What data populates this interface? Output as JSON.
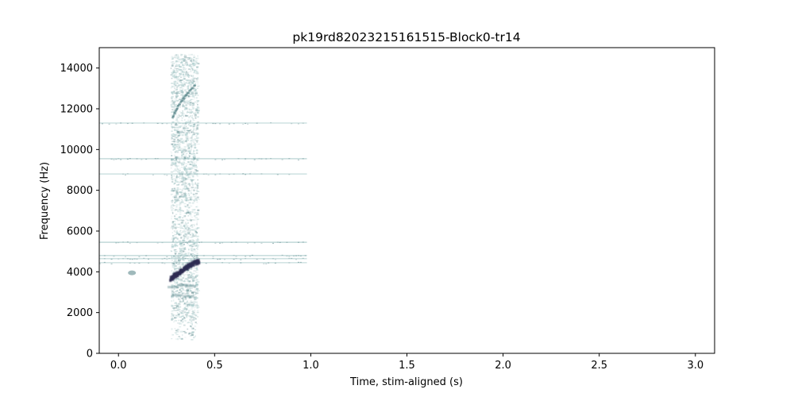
{
  "chart_data": {
    "type": "heatmap",
    "title": "pk19rd82023215161515-Block0-tr14",
    "xlabel": "Time, stim-aligned (s)",
    "ylabel": "Frequency (Hz)",
    "xlim": [
      -0.1,
      3.1
    ],
    "ylim": [
      0,
      15000
    ],
    "x_ticks": [
      0.0,
      0.5,
      1.0,
      1.5,
      2.0,
      2.5,
      3.0
    ],
    "x_tick_labels": [
      "0.0",
      "0.5",
      "1.0",
      "1.5",
      "2.0",
      "2.5",
      "3.0"
    ],
    "y_ticks": [
      0,
      2000,
      4000,
      6000,
      8000,
      10000,
      12000,
      14000
    ],
    "y_tick_labels": [
      "0",
      "2000",
      "4000",
      "6000",
      "8000",
      "10000",
      "12000",
      "14000"
    ],
    "grid": false,
    "colors": {
      "light": "#9fc4c4",
      "mid": "#5f8a8e",
      "dark": "#2e2d52"
    },
    "horizontal_bands": [
      {
        "freq_hz": 11300,
        "t_start": -0.1,
        "t_end": 0.98,
        "intensity": 0.45
      },
      {
        "freq_hz": 9550,
        "t_start": -0.1,
        "t_end": 0.98,
        "intensity": 0.6
      },
      {
        "freq_hz": 8800,
        "t_start": -0.1,
        "t_end": 0.98,
        "intensity": 0.5
      },
      {
        "freq_hz": 5450,
        "t_start": -0.1,
        "t_end": 0.98,
        "intensity": 0.65
      },
      {
        "freq_hz": 4800,
        "t_start": -0.1,
        "t_end": 0.98,
        "intensity": 0.55
      },
      {
        "freq_hz": 4650,
        "t_start": -0.1,
        "t_end": 0.98,
        "intensity": 0.5
      },
      {
        "freq_hz": 4450,
        "t_start": -0.1,
        "t_end": 0.98,
        "intensity": 0.45
      }
    ],
    "vocalization": {
      "t_start": 0.27,
      "t_end": 0.41,
      "f_low": 700,
      "f_high": 14700
    },
    "dark_trace": [
      {
        "t": 0.27,
        "f": 3700
      },
      {
        "t": 0.3,
        "f": 3900
      },
      {
        "t": 0.33,
        "f": 4100
      },
      {
        "t": 0.36,
        "f": 4300
      },
      {
        "t": 0.39,
        "f": 4450
      },
      {
        "t": 0.42,
        "f": 4550
      }
    ],
    "upper_trace": [
      {
        "t": 0.28,
        "f": 11600
      },
      {
        "t": 0.31,
        "f": 12200
      },
      {
        "t": 0.35,
        "f": 12700
      },
      {
        "t": 0.4,
        "f": 13200
      }
    ],
    "small_blob": {
      "t": 0.07,
      "f": 3950
    }
  }
}
